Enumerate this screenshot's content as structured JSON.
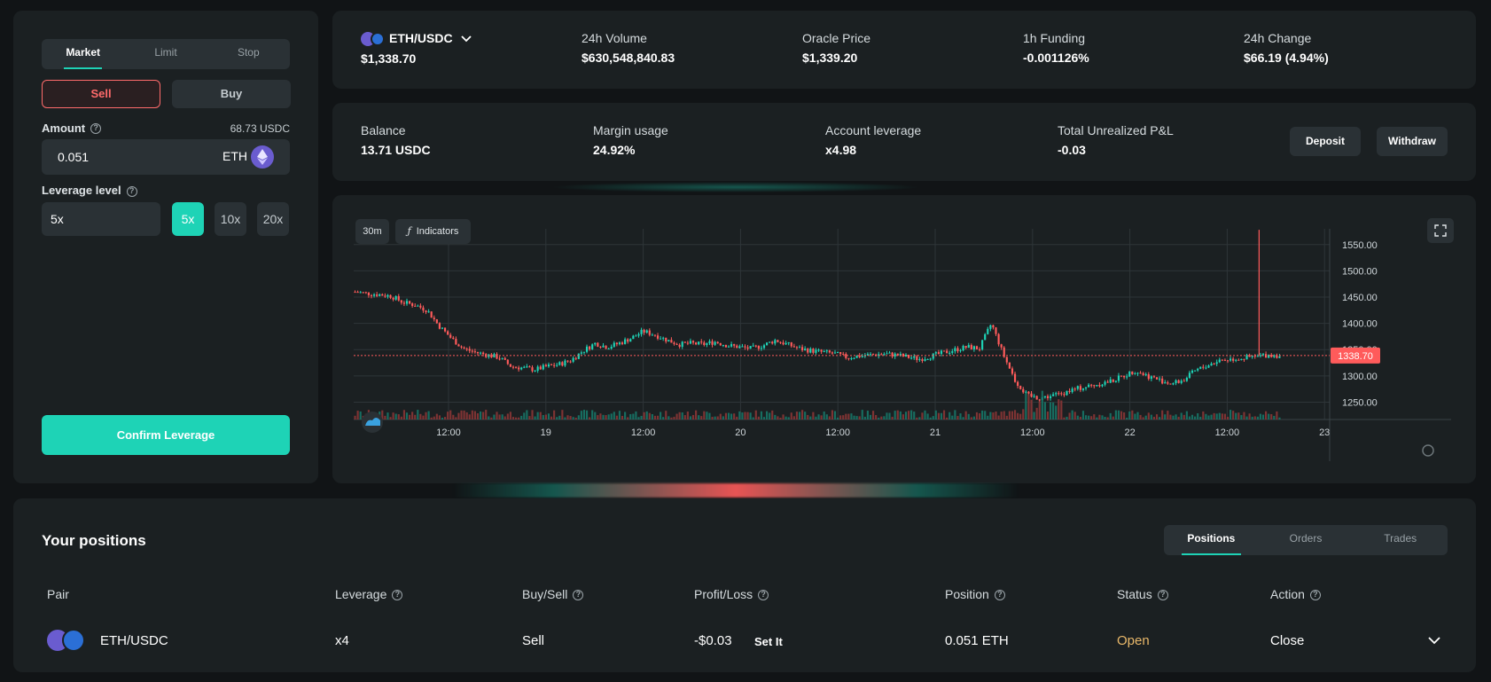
{
  "trade": {
    "order_tabs": [
      "Market",
      "Limit",
      "Stop"
    ],
    "sell_label": "Sell",
    "buy_label": "Buy",
    "amount_label": "Amount",
    "amount_balance": "68.73 USDC",
    "amount_value": "0.051",
    "amount_unit": "ETH",
    "leverage_label": "Leverage level",
    "leverage_value": "5x",
    "leverage_options": [
      "5x",
      "10x",
      "20x"
    ],
    "confirm_label": "Confirm Leverage"
  },
  "market": {
    "pair": "ETH/USDC",
    "price": "$1,338.70",
    "volume_label": "24h Volume",
    "volume_value": "$630,548,840.83",
    "oracle_label": "Oracle Price",
    "oracle_value": "$1,339.20",
    "funding_label": "1h Funding",
    "funding_value": "-0.001126%",
    "change_label": "24h Change",
    "change_value": "$66.19 (4.94%)"
  },
  "account": {
    "balance_label": "Balance",
    "balance_value": "13.71 USDC",
    "margin_label": "Margin usage",
    "margin_value": "24.92%",
    "leverage_label": "Account leverage",
    "leverage_value": "x4.98",
    "pnl_label": "Total Unrealized P&L",
    "pnl_value": "-0.03",
    "deposit_label": "Deposit",
    "withdraw_label": "Withdraw"
  },
  "chart": {
    "interval_label": "30m",
    "indicators_label": "Indicators",
    "fx_symbol": "ƒ",
    "last_price_label": "1338.70"
  },
  "chart_data": {
    "type": "candlestick",
    "title": "ETH/USDC",
    "interval": "30m",
    "last_price": 1338.7,
    "y_ticks": [
      "1550.00",
      "1500.00",
      "1450.00",
      "1400.00",
      "1350.00",
      "1300.00",
      "1250.00"
    ],
    "ylim": [
      1217,
      1580
    ],
    "x_ticks": [
      "12:00",
      "19",
      "12:00",
      "20",
      "12:00",
      "21",
      "12:00",
      "22",
      "12:00",
      "23"
    ],
    "close_path": [
      1460,
      1457,
      1455,
      1452,
      1440,
      1435,
      1425,
      1395,
      1372,
      1352,
      1345,
      1340,
      1335,
      1318,
      1315,
      1312,
      1318,
      1322,
      1330,
      1348,
      1362,
      1355,
      1362,
      1372,
      1385,
      1378,
      1368,
      1360,
      1362,
      1360,
      1365,
      1358,
      1355,
      1352,
      1358,
      1368,
      1360,
      1352,
      1348,
      1345,
      1342,
      1335,
      1338,
      1340,
      1342,
      1340,
      1336,
      1332,
      1338,
      1344,
      1350,
      1355,
      1352,
      1400,
      1340,
      1290,
      1262,
      1258,
      1262,
      1268,
      1275,
      1280,
      1285,
      1290,
      1300,
      1310,
      1300,
      1292,
      1285,
      1292,
      1310,
      1320,
      1330,
      1332,
      1334,
      1336,
      1340,
      1338.7
    ],
    "spike": {
      "high": 1578,
      "low": 1340
    }
  },
  "positions": {
    "title": "Your positions",
    "tabs": [
      "Positions",
      "Orders",
      "Trades"
    ],
    "columns": [
      "Pair",
      "Leverage",
      "Buy/Sell",
      "Profit/Loss",
      "Position",
      "Status",
      "Action"
    ],
    "rows": [
      {
        "pair": "ETH/USDC",
        "leverage": "x4",
        "side": "Sell",
        "pnl": "-$0.03",
        "set_label": "Set It",
        "position": "0.051 ETH",
        "status": "Open",
        "action": "Close"
      }
    ]
  },
  "colors": {
    "accent": "#1ed3b6",
    "negative": "#ff5b5b",
    "status_open": "#e9b86a",
    "background": "#111416",
    "panel": "#1b2022"
  }
}
